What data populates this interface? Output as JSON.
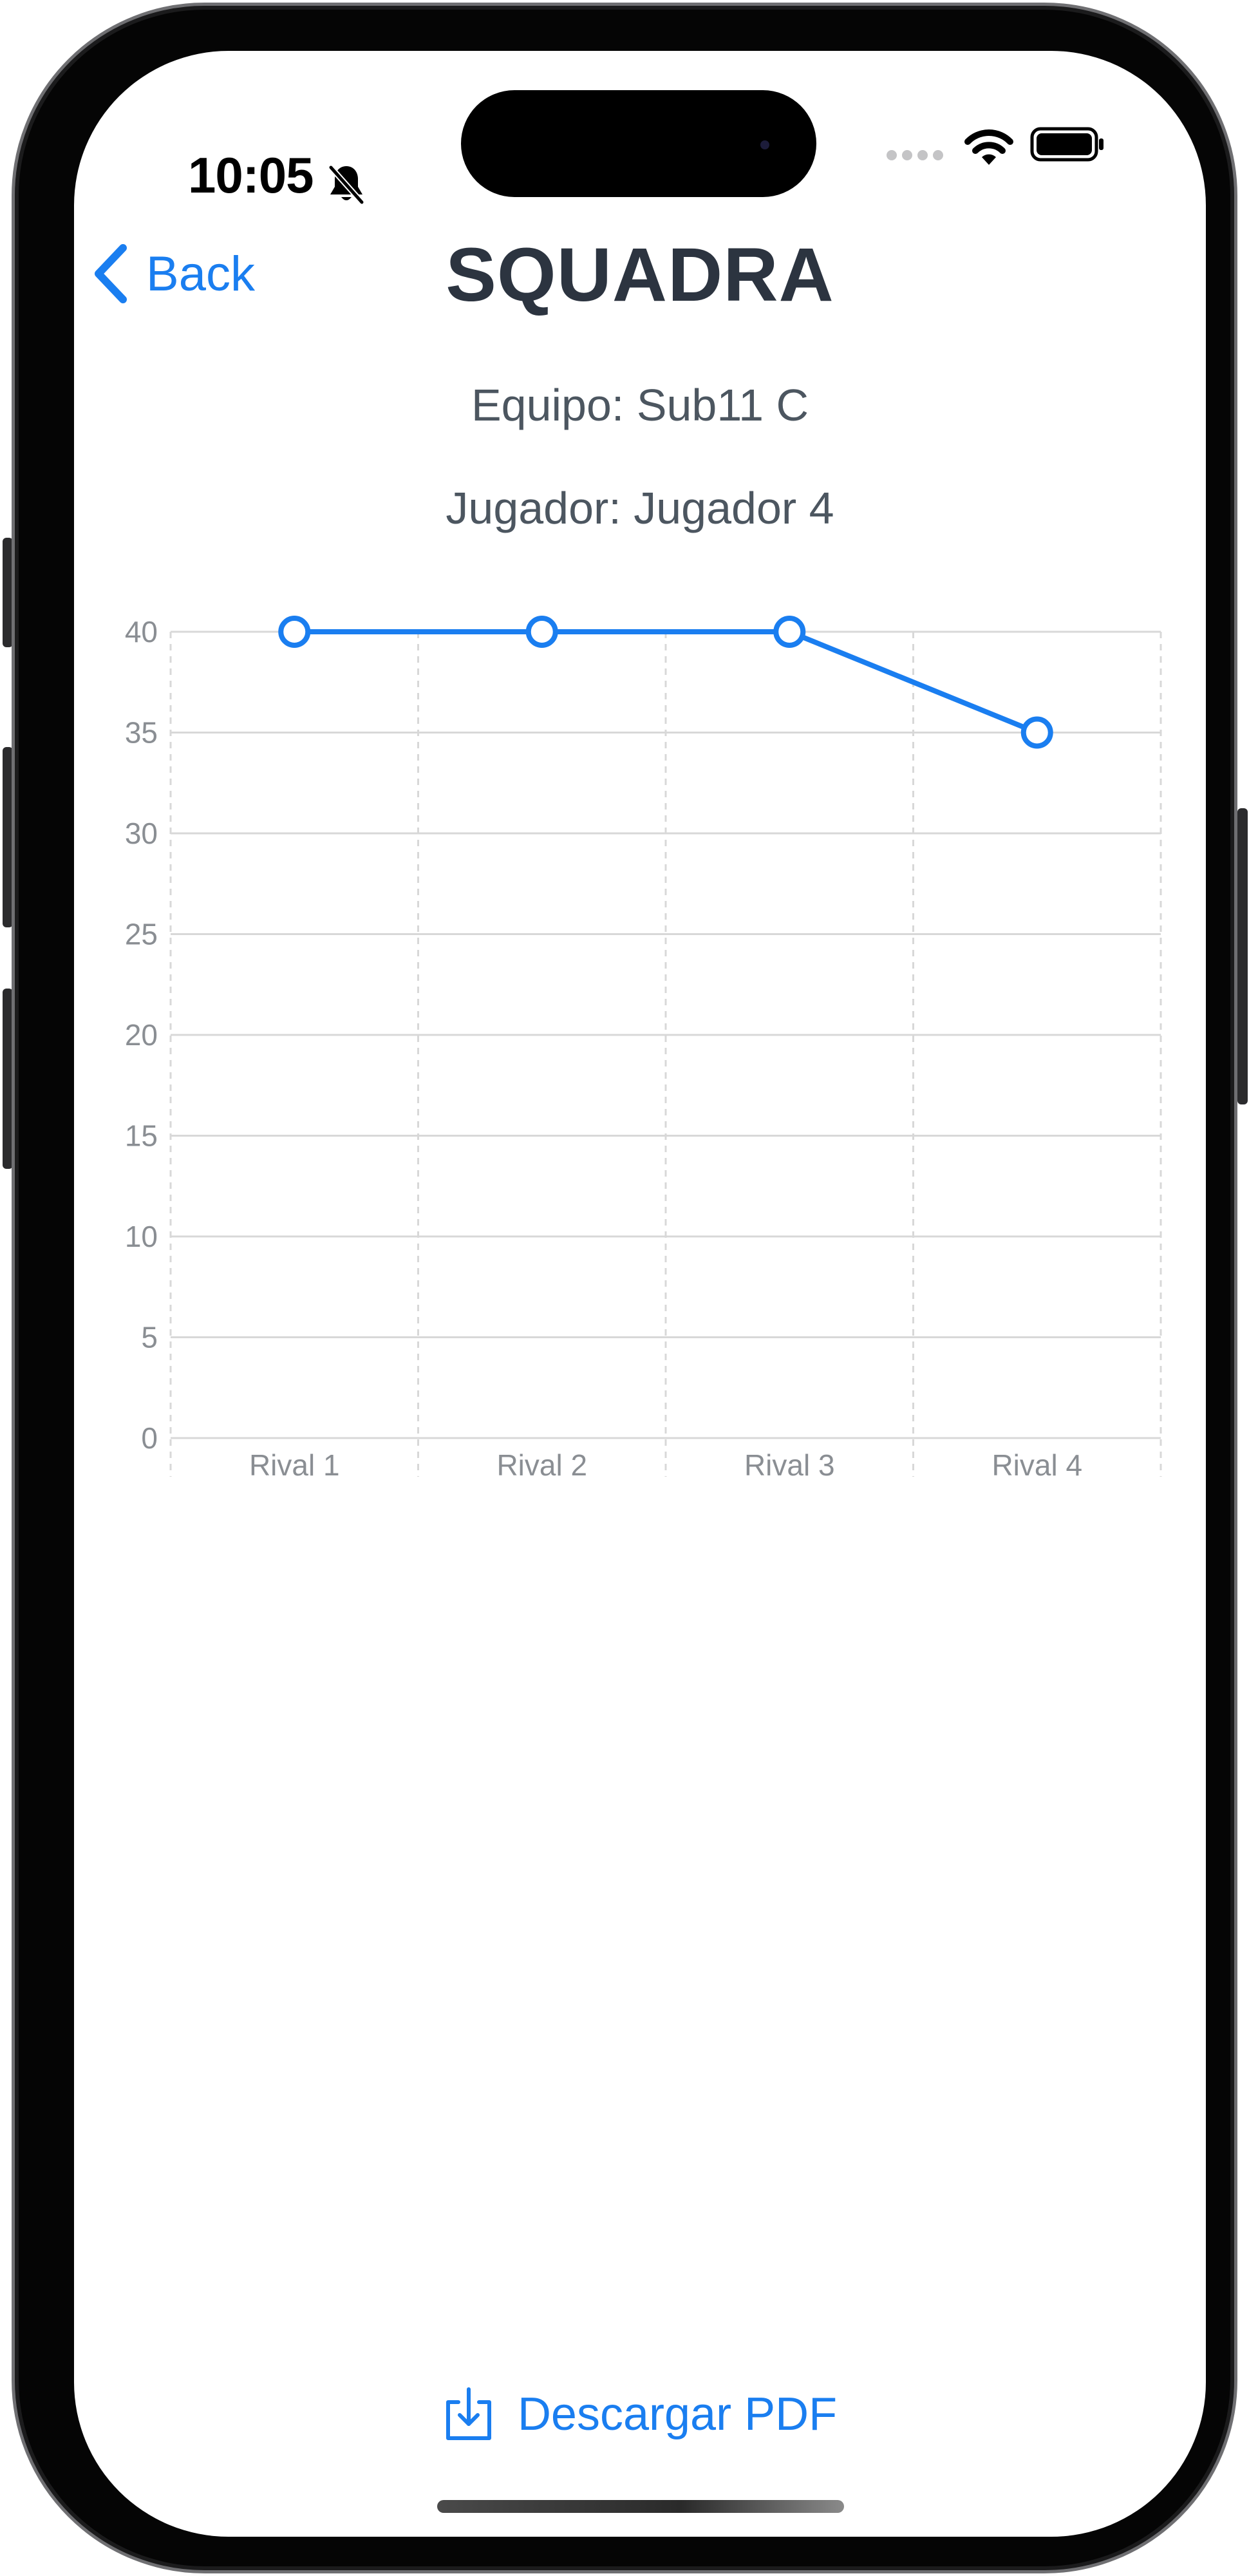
{
  "status_bar": {
    "time": "10:05",
    "icons": [
      "bell-slash-icon",
      "cellular-dots-icon",
      "wifi-icon",
      "battery-icon"
    ]
  },
  "nav": {
    "back_label": "Back",
    "title": "SQUADRA"
  },
  "info": {
    "team": "Equipo: Sub11 C",
    "player": "Jugador: Jugador 4"
  },
  "actions": {
    "download_pdf_label": "Descargar PDF",
    "download_icon": "download-icon"
  },
  "colors": {
    "accent": "#1a7ef0",
    "line": "#1a7ef0",
    "title": "#2c3440",
    "subtitle": "#4c5660",
    "axis_text": "#8a8e93",
    "grid": "#d8d8d8"
  },
  "chart_data": {
    "type": "line",
    "title": "",
    "xlabel": "",
    "ylabel": "",
    "categories": [
      "Rival 1",
      "Rival 2",
      "Rival 3",
      "Rival 4"
    ],
    "series": [
      {
        "values": [
          40,
          40,
          40,
          35
        ]
      }
    ],
    "ylim": [
      0,
      40
    ],
    "yticks": [
      0,
      5,
      10,
      15,
      20,
      25,
      30,
      35,
      40
    ],
    "grid": true,
    "legend": "none"
  }
}
